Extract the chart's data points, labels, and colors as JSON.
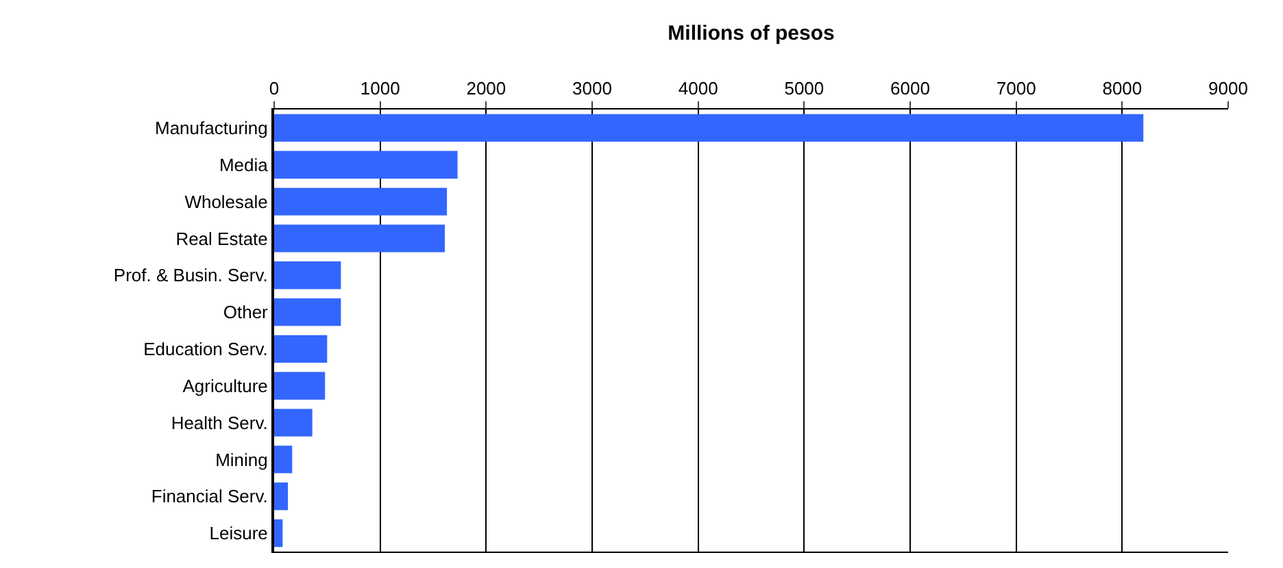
{
  "chart_data": {
    "type": "bar",
    "orientation": "horizontal",
    "title": "Millions of pesos",
    "categories": [
      "Manufacturing",
      "Media",
      "Wholesale",
      "Real Estate",
      "Prof. & Busin. Serv.",
      "Other",
      "Education Serv.",
      "Agriculture",
      "Health Serv.",
      "Mining",
      "Financial Serv.",
      "Leisure"
    ],
    "values": [
      8200,
      1730,
      1630,
      1610,
      630,
      630,
      500,
      480,
      360,
      170,
      130,
      80
    ],
    "color": "#3366ff",
    "xlim": [
      0,
      9000
    ],
    "xticks": [
      0,
      1000,
      2000,
      3000,
      4000,
      5000,
      6000,
      7000,
      8000,
      9000
    ],
    "grid": "x"
  }
}
